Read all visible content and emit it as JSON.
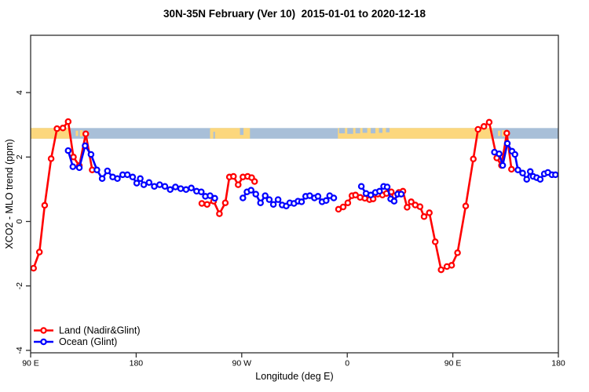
{
  "title": "30N-35N February (Ver 10)  2015-01-01 to 2020-12-18",
  "axes": {
    "x": {
      "label": "Longitude (deg E)",
      "range": [
        90,
        540
      ],
      "ticks": [
        {
          "pos": 90,
          "label": "90 E"
        },
        {
          "pos": 180,
          "label": "180"
        },
        {
          "pos": 270,
          "label": "90 W"
        },
        {
          "pos": 360,
          "label": "0"
        },
        {
          "pos": 450,
          "label": "90 E"
        },
        {
          "pos": 540,
          "label": "180"
        }
      ]
    },
    "y": {
      "label": "XCO2 - MLO trend (ppm)",
      "range": [
        -4.1,
        5.8
      ],
      "ticks": [
        {
          "pos": -4,
          "label": "-4"
        },
        {
          "pos": -2,
          "label": "-2"
        },
        {
          "pos": 0,
          "label": "0"
        },
        {
          "pos": 2,
          "label": "2"
        },
        {
          "pos": 4,
          "label": "4"
        }
      ]
    }
  },
  "legend": {
    "items": [
      {
        "label": "Land (Nadir&Glint)",
        "color": "#ff0000"
      },
      {
        "label": "Ocean (Glint)",
        "color": "#0000ff"
      }
    ]
  },
  "chart_data": {
    "type": "line",
    "title": "30N-35N February (Ver 10)  2015-01-01 to 2020-12-18",
    "xlabel": "Longitude (deg E)",
    "ylabel": "XCO2 - MLO trend (ppm)",
    "xlim": [
      90,
      540
    ],
    "ylim": [
      -4.1,
      5.8
    ],
    "grid": false,
    "legend_position": "bottom-left",
    "x_note": "longitude in deg E, continuous eastward: 90E -> 180 -> 90W(270) -> 0(360) -> 90E(450) -> 180(540)",
    "series": [
      {
        "name": "Land (Nadir&Glint)",
        "color": "#ff0000",
        "marker": "open-circle",
        "segments": [
          [
            [
              92.5,
              -1.45
            ],
            [
              97.5,
              -0.95
            ],
            [
              102,
              0.5
            ],
            [
              107.5,
              1.95
            ],
            [
              112.5,
              2.88
            ],
            [
              117.5,
              2.9
            ],
            [
              122,
              3.1
            ],
            [
              126.5,
              2.0
            ],
            [
              131.5,
              1.73
            ],
            [
              137,
              2.72
            ],
            [
              142.5,
              1.6
            ]
          ],
          [
            [
              236,
              0.56
            ],
            [
              240.5,
              0.53
            ],
            [
              246,
              0.63
            ],
            [
              251,
              0.24
            ],
            [
              256,
              0.58
            ],
            [
              259.5,
              1.38
            ],
            [
              263,
              1.4
            ],
            [
              267,
              1.14
            ],
            [
              271,
              1.38
            ],
            [
              275,
              1.4
            ],
            [
              278.5,
              1.36
            ],
            [
              281,
              1.24
            ]
          ],
          [
            [
              352.5,
              0.38
            ],
            [
              356.5,
              0.45
            ],
            [
              360.5,
              0.58
            ],
            [
              364,
              0.8
            ],
            [
              367,
              0.82
            ],
            [
              371,
              0.75
            ],
            [
              375,
              0.72
            ],
            [
              379,
              0.68
            ],
            [
              382,
              0.7
            ],
            [
              386,
              0.85
            ],
            [
              390,
              0.82
            ],
            [
              393.5,
              0.87
            ],
            [
              397.5,
              0.92
            ],
            [
              400.5,
              0.8
            ],
            [
              404,
              0.9
            ],
            [
              407.5,
              0.94
            ],
            [
              411,
              0.44
            ],
            [
              414.5,
              0.61
            ],
            [
              418,
              0.51
            ],
            [
              422,
              0.46
            ],
            [
              425.5,
              0.15
            ],
            [
              430,
              0.27
            ],
            [
              435,
              -0.63
            ],
            [
              440,
              -1.5
            ],
            [
              445,
              -1.4
            ],
            [
              449,
              -1.36
            ],
            [
              454,
              -0.97
            ],
            [
              461,
              0.48
            ],
            [
              467.5,
              1.94
            ],
            [
              471.5,
              2.86
            ],
            [
              476.5,
              2.95
            ],
            [
              481,
              3.08
            ],
            [
              487.5,
              1.97
            ],
            [
              491.5,
              1.74
            ],
            [
              496,
              2.74
            ],
            [
              500,
              1.62
            ]
          ]
        ]
      },
      {
        "name": "Ocean (Glint)",
        "color": "#0000ff",
        "marker": "open-circle",
        "segments": [
          [
            [
              122,
              2.2
            ],
            [
              126,
              1.7
            ],
            [
              131.5,
              1.67
            ],
            [
              136.5,
              2.35
            ],
            [
              141.5,
              2.08
            ],
            [
              146.5,
              1.6
            ],
            [
              151,
              1.33
            ],
            [
              155.5,
              1.57
            ],
            [
              160,
              1.38
            ],
            [
              164,
              1.33
            ],
            [
              168.5,
              1.45
            ],
            [
              172.5,
              1.45
            ],
            [
              177,
              1.38
            ],
            [
              180.5,
              1.19
            ],
            [
              183.5,
              1.33
            ],
            [
              186.5,
              1.14
            ],
            [
              191,
              1.21
            ],
            [
              195.5,
              1.09
            ],
            [
              200,
              1.14
            ],
            [
              204.5,
              1.09
            ],
            [
              209,
              0.99
            ],
            [
              213.5,
              1.07
            ],
            [
              218,
              1.02
            ],
            [
              222.5,
              0.99
            ],
            [
              227,
              1.04
            ],
            [
              231.5,
              0.94
            ],
            [
              235.5,
              0.92
            ],
            [
              239,
              0.78
            ],
            [
              243,
              0.8
            ],
            [
              247,
              0.72
            ]
          ],
          [
            [
              271,
              0.73
            ],
            [
              274.5,
              0.92
            ],
            [
              278,
              0.97
            ],
            [
              282,
              0.85
            ],
            [
              286,
              0.58
            ],
            [
              290,
              0.8
            ],
            [
              293.5,
              0.68
            ],
            [
              297,
              0.53
            ],
            [
              301,
              0.68
            ],
            [
              304.5,
              0.51
            ],
            [
              308,
              0.48
            ],
            [
              311,
              0.58
            ],
            [
              314.5,
              0.56
            ],
            [
              318,
              0.63
            ],
            [
              321,
              0.61
            ],
            [
              324.5,
              0.78
            ],
            [
              328,
              0.8
            ],
            [
              332,
              0.73
            ],
            [
              335,
              0.78
            ],
            [
              338.5,
              0.61
            ],
            [
              342,
              0.65
            ],
            [
              345,
              0.8
            ],
            [
              348.5,
              0.73
            ]
          ],
          [
            [
              372,
              1.09
            ],
            [
              376,
              0.87
            ],
            [
              380,
              0.82
            ],
            [
              384,
              0.9
            ],
            [
              387.5,
              0.94
            ],
            [
              391,
              1.09
            ],
            [
              394,
              1.07
            ],
            [
              397,
              0.7
            ],
            [
              400,
              0.63
            ],
            [
              403,
              0.85
            ],
            [
              406,
              0.85
            ]
          ],
          [
            [
              485.5,
              2.15
            ],
            [
              489.5,
              2.1
            ],
            [
              492.5,
              1.74
            ],
            [
              496.5,
              2.42
            ],
            [
              500.5,
              2.18
            ],
            [
              503,
              2.08
            ],
            [
              505.5,
              1.6
            ],
            [
              509.5,
              1.5
            ],
            [
              513,
              1.31
            ],
            [
              516,
              1.55
            ],
            [
              518.5,
              1.4
            ],
            [
              521.5,
              1.36
            ],
            [
              524.5,
              1.31
            ],
            [
              528,
              1.48
            ],
            [
              531,
              1.52
            ],
            [
              534.5,
              1.45
            ],
            [
              537.5,
              1.45
            ]
          ]
        ]
      }
    ],
    "map_band": {
      "description": "land/ocean strip for the 30N-35N latitude band drawn across the plot",
      "v_top": 2.9,
      "v_bottom": 2.57,
      "ocean_color": "#a8bfd8",
      "land_color": "#fcd77d",
      "land_segments": [
        [
          90,
          124
        ],
        [
          243,
          277
        ],
        [
          352,
          484
        ]
      ],
      "islands": [
        [
          128.5,
          130.5,
          0.25,
          0.75
        ],
        [
          132,
          134.5,
          0.2,
          0.8
        ],
        [
          136,
          138,
          0.25,
          0.75
        ],
        [
          488.5,
          490.5,
          0.25,
          0.75
        ],
        [
          492,
          494.5,
          0.2,
          0.8
        ],
        [
          496,
          498,
          0.25,
          0.75
        ]
      ],
      "ocean_inlets": [
        [
          245.8,
          247.2,
          0.35,
          1.0
        ],
        [
          268.5,
          271.5,
          0.0,
          0.65
        ],
        [
          353,
          358,
          0.0,
          0.5
        ],
        [
          360,
          365,
          0.0,
          0.55
        ],
        [
          367,
          371,
          0.0,
          0.5
        ],
        [
          373,
          377,
          0.0,
          0.45
        ],
        [
          380,
          384,
          0.0,
          0.5
        ],
        [
          387,
          390,
          0.0,
          0.45
        ],
        [
          393,
          396,
          0.0,
          0.4
        ]
      ]
    }
  }
}
